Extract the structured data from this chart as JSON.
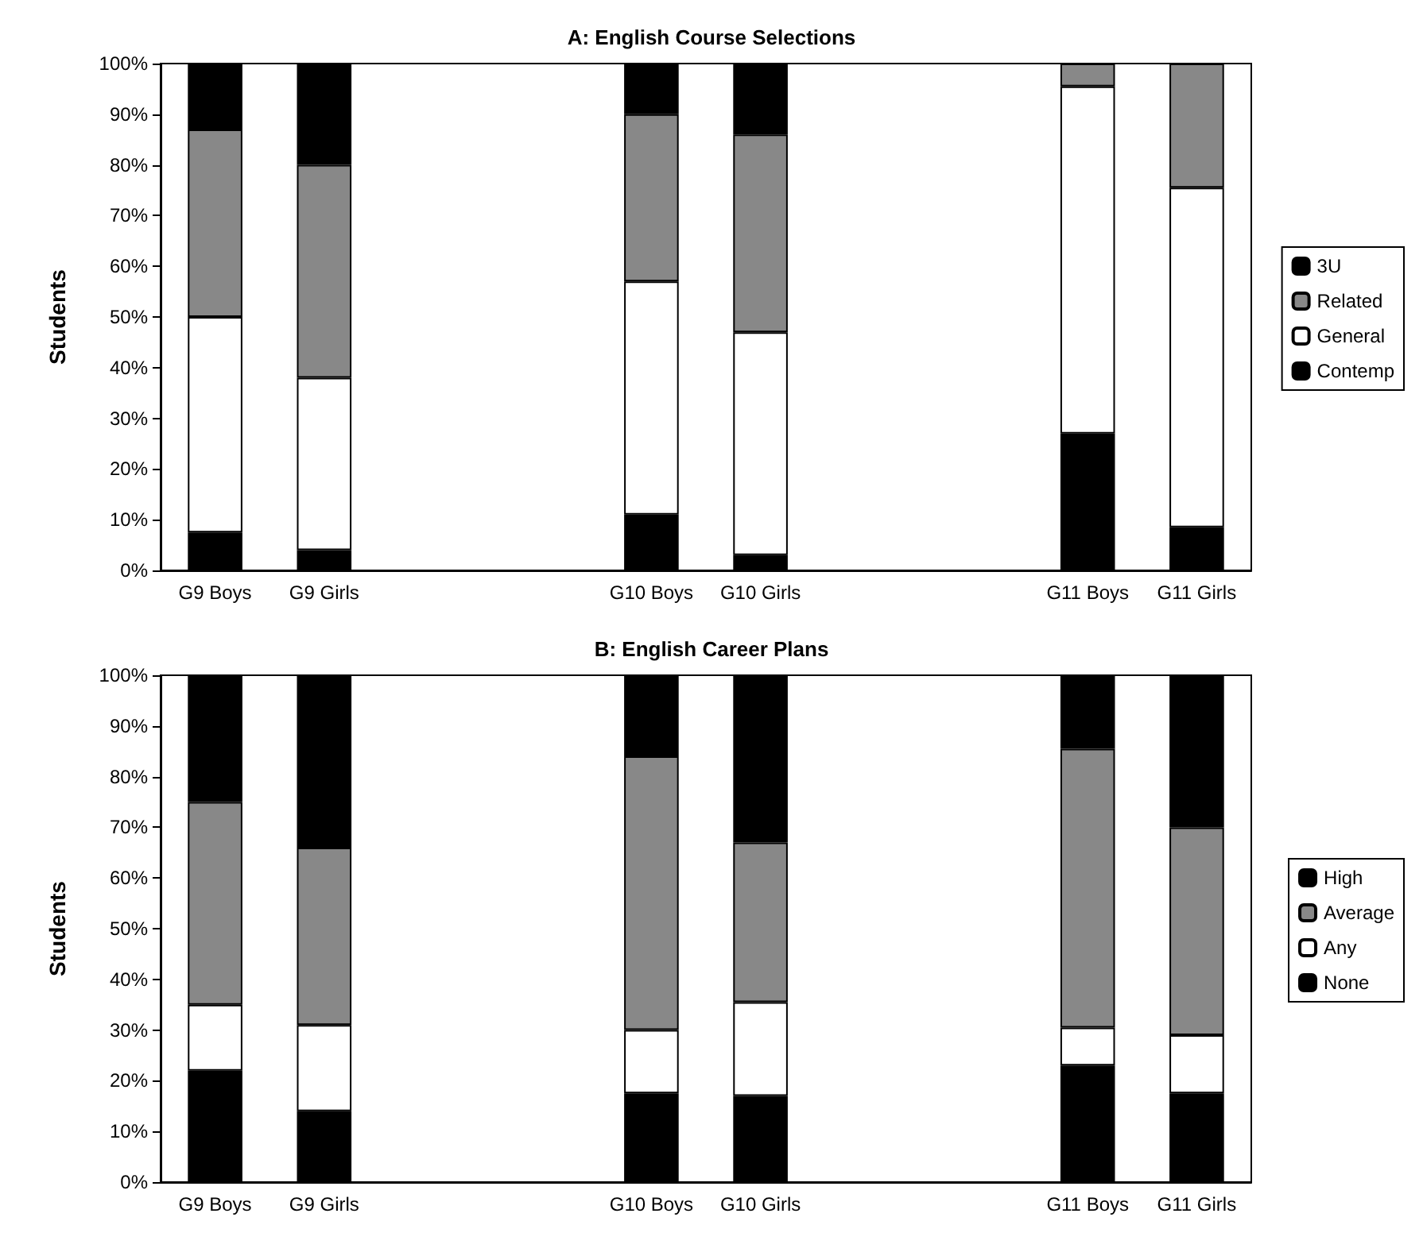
{
  "chart_data": [
    {
      "type": "bar",
      "title": "A: English Course Selections",
      "ylabel": "Students",
      "stacked": true,
      "legend": "right",
      "grid": false,
      "categories": [
        "G9 Boys",
        "G9 Girls",
        null,
        null,
        "G10 Boys",
        "G10 Girls",
        null,
        null,
        "G11 Boys",
        "G11 Girls"
      ],
      "ylim": [
        0,
        100
      ],
      "yticks": [
        {
          "value": 0,
          "label": "0%"
        },
        {
          "value": 10,
          "label": "10%"
        },
        {
          "value": 20,
          "label": "20%"
        },
        {
          "value": 30,
          "label": "30%"
        },
        {
          "value": 40,
          "label": "40%"
        },
        {
          "value": 50,
          "label": "50%"
        },
        {
          "value": 60,
          "label": "60%"
        },
        {
          "value": 70,
          "label": "70%"
        },
        {
          "value": 80,
          "label": "80%"
        },
        {
          "value": 90,
          "label": "90%"
        },
        {
          "value": 100,
          "label": "100%"
        }
      ],
      "series": [
        {
          "name": "Contemp",
          "color": "#000000",
          "values": [
            7.5,
            4,
            null,
            null,
            11,
            3,
            null,
            null,
            27,
            8.5
          ]
        },
        {
          "name": "General",
          "color": "#ffffff",
          "values": [
            42.5,
            34,
            null,
            null,
            46,
            44,
            null,
            null,
            68.5,
            67
          ]
        },
        {
          "name": "Related",
          "color": "#888888",
          "values": [
            37,
            42,
            null,
            null,
            33,
            39,
            null,
            null,
            4.5,
            24.5
          ]
        },
        {
          "name": "3U",
          "color": "#000000",
          "values": [
            13,
            20,
            null,
            null,
            10,
            14,
            null,
            null,
            0,
            0
          ]
        }
      ]
    },
    {
      "type": "bar",
      "title": "B: English Career Plans",
      "ylabel": "Students",
      "stacked": true,
      "legend": "right",
      "grid": false,
      "categories": [
        "G9 Boys",
        "G9 Girls",
        null,
        null,
        "G10 Boys",
        "G10 Girls",
        null,
        null,
        "G11 Boys",
        "G11 Girls"
      ],
      "ylim": [
        0,
        100
      ],
      "yticks": [
        {
          "value": 0,
          "label": "0%"
        },
        {
          "value": 10,
          "label": "10%"
        },
        {
          "value": 20,
          "label": "20%"
        },
        {
          "value": 30,
          "label": "30%"
        },
        {
          "value": 40,
          "label": "40%"
        },
        {
          "value": 50,
          "label": "50%"
        },
        {
          "value": 60,
          "label": "60%"
        },
        {
          "value": 70,
          "label": "70%"
        },
        {
          "value": 80,
          "label": "80%"
        },
        {
          "value": 90,
          "label": "90%"
        },
        {
          "value": 100,
          "label": "100%"
        }
      ],
      "series": [
        {
          "name": "None",
          "color": "#000000",
          "values": [
            22,
            14,
            null,
            null,
            17.5,
            17,
            null,
            null,
            23,
            17.5
          ]
        },
        {
          "name": "Any",
          "color": "#ffffff",
          "values": [
            13,
            17,
            null,
            null,
            12.5,
            18.5,
            null,
            null,
            7.5,
            11.5
          ]
        },
        {
          "name": "Average",
          "color": "#888888",
          "values": [
            40,
            35,
            null,
            null,
            54,
            31.5,
            null,
            null,
            55,
            41
          ]
        },
        {
          "name": "High",
          "color": "#000000",
          "values": [
            25,
            34,
            null,
            null,
            16,
            33,
            null,
            null,
            14.5,
            30
          ]
        }
      ]
    }
  ]
}
